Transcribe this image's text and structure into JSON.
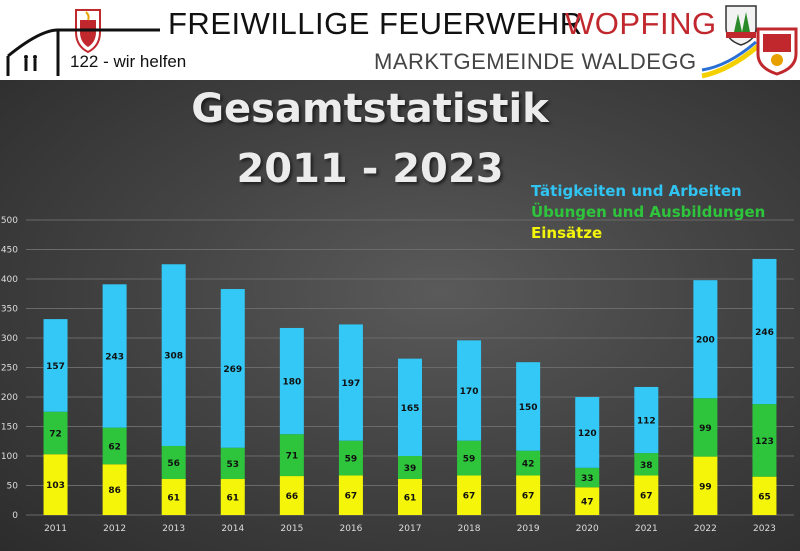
{
  "header": {
    "brand_left": "FREIWILLIGE FEUERWEHR",
    "brand_right": "WOPFING",
    "subtitle": "MARKTGEMEINDE WALDEGG",
    "slogan": "122 - wir helfen"
  },
  "colors": {
    "einsaetze": "#f5f50a",
    "uebungen": "#2ec43c",
    "taetigkeiten": "#33c8f5",
    "brand_red": "#c0282e"
  },
  "chart_data": {
    "type": "bar",
    "stacked": true,
    "title": "Gesamtstatistik",
    "subtitle": "2011 - 2023",
    "categories": [
      "2011",
      "2012",
      "2013",
      "2014",
      "2015",
      "2016",
      "2017",
      "2018",
      "2019",
      "2020",
      "2021",
      "2022",
      "2023"
    ],
    "series": [
      {
        "name": "Einsätze",
        "values": [
          103,
          86,
          61,
          61,
          66,
          67,
          61,
          67,
          67,
          47,
          67,
          99,
          65
        ]
      },
      {
        "name": "Übungen und Ausbildungen",
        "values": [
          72,
          62,
          56,
          53,
          71,
          59,
          39,
          59,
          42,
          33,
          38,
          99,
          123
        ]
      },
      {
        "name": "Tätigkeiten und Arbeiten",
        "values": [
          157,
          243,
          308,
          269,
          180,
          197,
          165,
          170,
          150,
          120,
          112,
          200,
          246
        ]
      }
    ],
    "legend": [
      "Tätigkeiten und Arbeiten",
      "Übungen und Ausbildungen",
      "Einsätze"
    ],
    "legend_position": "top-right",
    "yticks": [
      0,
      50,
      100,
      150,
      200,
      250,
      300,
      350,
      400,
      450,
      500
    ],
    "ylim": [
      0,
      500
    ],
    "grid": true
  }
}
